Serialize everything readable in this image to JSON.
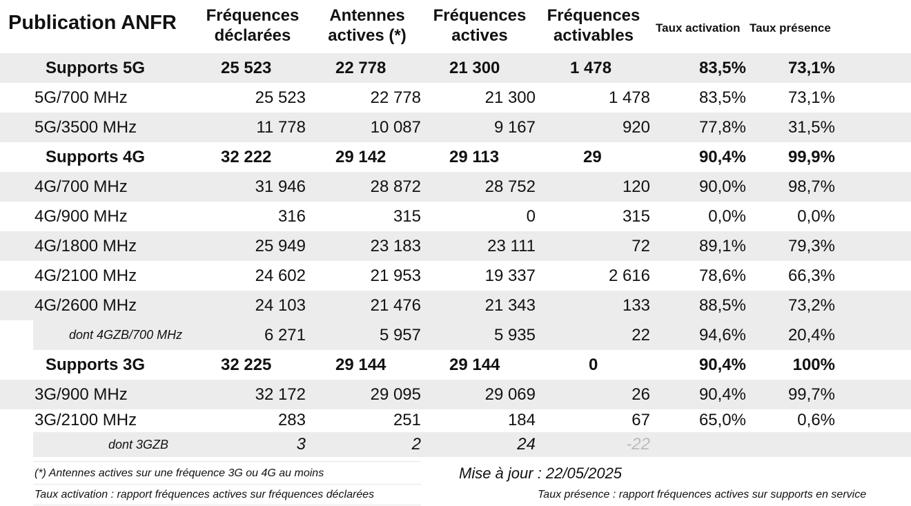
{
  "header": {
    "title": "Publication ANFR",
    "col1": [
      "Fréquences",
      "déclarées"
    ],
    "col2": [
      "Antennes",
      "actives (*)"
    ],
    "col3": [
      "Fréquences",
      "actives"
    ],
    "col4": [
      "Fréquences",
      "activables"
    ],
    "col5": "Taux activation",
    "col6": "Taux présence"
  },
  "rows": {
    "s5g": {
      "label": "Supports 5G",
      "v": [
        "25 523",
        "22 778",
        "21 300",
        "1 478",
        "83,5%",
        "73,1%"
      ]
    },
    "r5g700": {
      "label": "5G/700 MHz",
      "v": [
        "25 523",
        "22 778",
        "21 300",
        "1 478",
        "83,5%",
        "73,1%"
      ]
    },
    "r5g3500": {
      "label": "5G/3500 MHz",
      "v": [
        "11 778",
        "10 087",
        "9 167",
        "920",
        "77,8%",
        "31,5%"
      ]
    },
    "s4g": {
      "label": "Supports 4G",
      "v": [
        "32 222",
        "29 142",
        "29 113",
        "29",
        "90,4%",
        "99,9%"
      ]
    },
    "r4g700": {
      "label": "4G/700 MHz",
      "v": [
        "31 946",
        "28 872",
        "28 752",
        "120",
        "90,0%",
        "98,7%"
      ]
    },
    "r4g900": {
      "label": "4G/900 MHz",
      "v": [
        "316",
        "315",
        "0",
        "315",
        "0,0%",
        "0,0%"
      ]
    },
    "r4g1800": {
      "label": "4G/1800 MHz",
      "v": [
        "25 949",
        "23 183",
        "23 111",
        "72",
        "89,1%",
        "79,3%"
      ]
    },
    "r4g2100": {
      "label": "4G/2100 MHz",
      "v": [
        "24 602",
        "21 953",
        "19 337",
        "2 616",
        "78,6%",
        "66,3%"
      ]
    },
    "r4g2600": {
      "label": "4G/2600 MHz",
      "v": [
        "24 103",
        "21 476",
        "21 343",
        "133",
        "88,5%",
        "73,2%"
      ]
    },
    "d4gzb": {
      "label": "dont 4GZB/700 MHz",
      "v": [
        "6 271",
        "5 957",
        "5 935",
        "22",
        "94,6%",
        "20,4%"
      ]
    },
    "s3g": {
      "label": "Supports 3G",
      "v": [
        "32 225",
        "29 144",
        "29 144",
        "0",
        "90,4%",
        "100%"
      ]
    },
    "r3g900": {
      "label": "3G/900 MHz",
      "v": [
        "32 172",
        "29 095",
        "29 069",
        "26",
        "90,4%",
        "99,7%"
      ]
    },
    "r3g2100": {
      "label": "3G/2100 MHz",
      "v": [
        "283",
        "251",
        "184",
        "67",
        "65,0%",
        "0,6%"
      ]
    },
    "d3gzb": {
      "label": "dont 3GZB",
      "v": [
        "3",
        "2",
        "24",
        "-22"
      ]
    }
  },
  "footer": {
    "note_antennes": "(*) Antennes actives sur une fréquence 3G ou 4G au moins",
    "update": "Mise à jour : 22/05/2025",
    "note_activation": "Taux activation : rapport fréquences actives sur fréquences déclarées",
    "note_presence": "Taux présence : rapport fréquences actives sur supports en service"
  },
  "colors": {
    "row_alt": "#ececec",
    "muted": "#bbbbbb",
    "text": "#111111"
  }
}
